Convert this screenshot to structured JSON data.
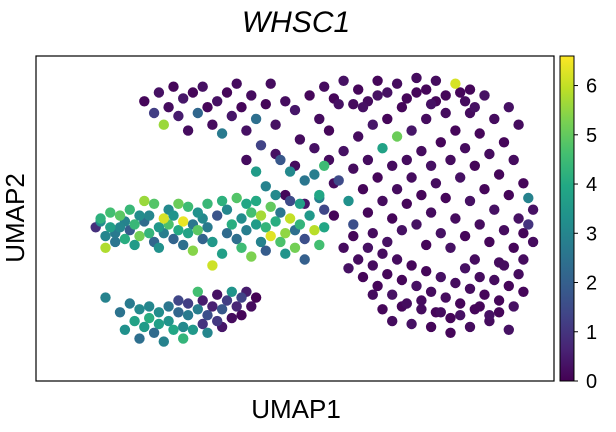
{
  "chart_data": {
    "type": "scatter",
    "title": "WHSC1",
    "xlabel": "UMAP1",
    "ylabel": "UMAP2",
    "colormap": "viridis",
    "colorbar": {
      "range": [
        0,
        6.6
      ],
      "ticks": [
        0,
        1,
        2,
        3,
        4,
        5,
        6
      ],
      "tick_labels": [
        "0",
        "1",
        "2",
        "3",
        "4",
        "5",
        "6"
      ]
    },
    "xlim": [
      0,
      100
    ],
    "ylim": [
      0,
      100
    ],
    "grid": false,
    "point_color_default": "#440154",
    "points": [
      [
        9,
        47,
        0.9
      ],
      [
        10,
        49,
        3.2
      ],
      [
        10,
        50,
        4.2
      ],
      [
        11,
        44,
        3.0
      ],
      [
        11,
        40,
        5.8
      ],
      [
        12,
        47,
        3.7
      ],
      [
        12,
        52,
        4.6
      ],
      [
        13,
        45,
        2.7
      ],
      [
        13,
        42,
        2.6
      ],
      [
        14,
        51,
        4.9
      ],
      [
        14,
        47,
        3.0
      ],
      [
        15,
        43,
        4.1
      ],
      [
        15,
        49,
        2.9
      ],
      [
        16,
        53,
        4.4
      ],
      [
        16,
        46,
        1.9
      ],
      [
        17,
        41,
        3.6
      ],
      [
        17,
        48,
        4.4
      ],
      [
        18,
        51,
        3.2
      ],
      [
        18,
        44,
        5.2
      ],
      [
        19,
        56,
        5.6
      ],
      [
        19,
        49,
        2.3
      ],
      [
        20,
        45,
        4.3
      ],
      [
        20,
        51,
        3.0
      ],
      [
        21,
        42,
        2.2
      ],
      [
        21,
        55,
        4.8
      ],
      [
        22,
        47,
        3.5
      ],
      [
        22,
        40,
        3.3
      ],
      [
        23,
        50,
        6.2
      ],
      [
        23,
        45,
        2.8
      ],
      [
        24,
        53,
        3.1
      ],
      [
        24,
        48,
        4.7
      ],
      [
        25,
        43,
        2.1
      ],
      [
        25,
        51,
        3.4
      ],
      [
        26,
        55,
        5.1
      ],
      [
        26,
        46,
        4.0
      ],
      [
        27,
        49,
        6.4
      ],
      [
        27,
        41,
        2.4
      ],
      [
        28,
        54,
        4.5
      ],
      [
        28,
        45,
        3.8
      ],
      [
        29,
        48,
        2.6
      ],
      [
        29,
        39,
        5.4
      ],
      [
        30,
        52,
        3.3
      ],
      [
        30,
        46,
        4.9
      ],
      [
        31,
        43,
        2.1
      ],
      [
        31,
        50,
        3.1
      ],
      [
        32,
        55,
        4.4
      ],
      [
        32,
        47,
        2.7
      ],
      [
        33,
        42,
        3.5
      ],
      [
        33,
        34,
        6.1
      ],
      [
        34,
        51,
        1.7
      ],
      [
        35,
        56,
        4.2
      ],
      [
        35,
        38,
        3.7
      ],
      [
        36,
        45,
        2.3
      ],
      [
        36,
        53,
        3.0
      ],
      [
        37,
        48,
        4.1
      ],
      [
        38,
        43,
        2.4
      ],
      [
        38,
        57,
        4.8
      ],
      [
        39,
        50,
        3.2
      ],
      [
        39,
        40,
        4.5
      ],
      [
        40,
        55,
        3.9
      ],
      [
        40,
        46,
        2.8
      ],
      [
        41,
        52,
        4.6
      ],
      [
        41,
        37,
        5.3
      ],
      [
        42,
        48,
        3.6
      ],
      [
        42,
        56,
        4.0
      ],
      [
        43,
        42,
        2.9
      ],
      [
        43,
        51,
        5.7
      ],
      [
        44,
        47,
        4.3
      ],
      [
        44,
        39,
        1.9
      ],
      [
        45,
        54,
        5.0
      ],
      [
        45,
        44,
        6.3
      ],
      [
        46,
        49,
        4.1
      ],
      [
        46,
        58,
        3.1
      ],
      [
        47,
        42,
        4.7
      ],
      [
        47,
        52,
        2.6
      ],
      [
        48,
        45,
        5.5
      ],
      [
        48,
        38,
        3.4
      ],
      [
        49,
        50,
        6.0
      ],
      [
        49,
        56,
        1.5
      ],
      [
        50,
        46,
        2.4
      ],
      [
        50,
        40,
        5.2
      ],
      [
        51,
        55,
        3.7
      ],
      [
        51,
        48,
        4.3
      ],
      [
        52,
        43,
        1.6
      ],
      [
        52,
        36,
        2.0
      ],
      [
        53,
        51,
        3.5
      ],
      [
        54,
        46,
        5.9
      ],
      [
        55,
        57,
        2.8
      ],
      [
        55,
        41,
        4.6
      ],
      [
        56,
        53,
        1.4
      ],
      [
        56,
        47,
        3.9
      ],
      [
        11,
        23,
        2.9
      ],
      [
        14,
        18,
        2.5
      ],
      [
        15,
        12,
        3.3
      ],
      [
        16,
        21,
        2.7
      ],
      [
        17,
        15,
        3.8
      ],
      [
        18,
        19,
        3.1
      ],
      [
        18,
        9,
        2.4
      ],
      [
        19,
        13,
        3.6
      ],
      [
        20,
        20,
        3.0
      ],
      [
        20,
        16,
        4.1
      ],
      [
        21,
        11,
        2.3
      ],
      [
        22,
        18,
        3.2
      ],
      [
        22,
        14,
        3.7
      ],
      [
        23,
        8,
        2.9
      ],
      [
        24,
        20,
        2.6
      ],
      [
        24,
        15,
        3.4
      ],
      [
        25,
        12,
        3.9
      ],
      [
        26,
        18,
        2.2
      ],
      [
        26,
        22,
        1.4
      ],
      [
        27,
        13,
        3.1
      ],
      [
        27,
        9,
        4.3
      ],
      [
        28,
        17,
        2.7
      ],
      [
        28,
        21,
        1.2
      ],
      [
        29,
        12,
        3.5
      ],
      [
        30,
        19,
        2.8
      ],
      [
        30,
        25,
        4.6
      ],
      [
        31,
        14,
        1.0
      ],
      [
        31,
        22,
        0.5
      ],
      [
        32,
        17,
        1.6
      ],
      [
        32,
        11,
        3.0
      ],
      [
        33,
        20,
        0.6
      ],
      [
        34,
        15,
        1.1
      ],
      [
        34,
        24,
        0.3
      ],
      [
        35,
        19,
        1.8
      ],
      [
        35,
        13,
        0.4
      ],
      [
        36,
        22,
        1.2
      ],
      [
        37,
        16,
        0.2
      ],
      [
        37,
        25,
        3.4
      ],
      [
        38,
        20,
        0.7
      ],
      [
        39,
        23,
        1.3
      ],
      [
        39,
        17,
        0.1
      ],
      [
        40,
        25,
        0.5
      ],
      [
        41,
        20,
        0.2
      ],
      [
        42,
        23,
        0.0
      ],
      [
        19,
        90,
        0.1
      ],
      [
        21,
        86,
        1.2
      ],
      [
        22,
        93,
        0.3
      ],
      [
        23,
        82,
        5.6
      ],
      [
        24,
        88,
        0.2
      ],
      [
        25,
        95,
        0.1
      ],
      [
        26,
        85,
        0.5
      ],
      [
        27,
        91,
        0.4
      ],
      [
        28,
        80,
        0.2
      ],
      [
        29,
        93,
        0.1
      ],
      [
        30,
        86,
        2.2
      ],
      [
        31,
        95,
        0.3
      ],
      [
        32,
        88,
        0.1
      ],
      [
        33,
        82,
        0.2
      ],
      [
        34,
        90,
        0.3
      ],
      [
        35,
        79,
        2.7
      ],
      [
        36,
        93,
        0.1
      ],
      [
        37,
        85,
        0.4
      ],
      [
        38,
        96,
        0.2
      ],
      [
        39,
        88,
        0.1
      ],
      [
        40,
        80,
        0.3
      ],
      [
        41,
        92,
        0.2
      ],
      [
        42,
        84,
        2.4
      ],
      [
        43,
        75,
        1.3
      ],
      [
        44,
        89,
        0.1
      ],
      [
        45,
        96,
        0.2
      ],
      [
        46,
        82,
        0.3
      ],
      [
        47,
        70,
        1.8
      ],
      [
        48,
        90,
        0.2
      ],
      [
        49,
        66,
        3.1
      ],
      [
        50,
        87,
        0.4
      ],
      [
        51,
        77,
        0.2
      ],
      [
        52,
        63,
        2.6
      ],
      [
        53,
        92,
        0.1
      ],
      [
        54,
        74,
        0.3
      ],
      [
        55,
        84,
        0.2
      ],
      [
        56,
        68,
        4.5
      ],
      [
        57,
        80,
        0.1
      ],
      [
        58,
        62,
        0.2
      ],
      [
        59,
        89,
        0.3
      ],
      [
        40,
        70,
        0.2
      ],
      [
        42,
        66,
        3.6
      ],
      [
        44,
        61,
        2.9
      ],
      [
        46,
        72,
        0.3
      ],
      [
        48,
        58,
        0.1
      ],
      [
        50,
        68,
        0.2
      ],
      [
        52,
        55,
        0.4
      ],
      [
        54,
        65,
        2.8
      ],
      [
        55,
        58,
        3.9
      ],
      [
        57,
        70,
        0.2
      ],
      [
        58,
        51,
        0.1
      ],
      [
        59,
        63,
        1.5
      ],
      [
        60,
        73,
        0.3
      ],
      [
        61,
        56,
        3.3
      ],
      [
        62,
        67,
        0.2
      ],
      [
        62,
        48,
        1.6
      ],
      [
        63,
        78,
        0.2
      ],
      [
        64,
        60,
        0.1
      ],
      [
        64,
        88,
        0.3
      ],
      [
        65,
        70,
        0.2
      ],
      [
        65,
        52,
        0.1
      ],
      [
        66,
        82,
        0.4
      ],
      [
        66,
        45,
        0.2
      ],
      [
        67,
        64,
        0.1
      ],
      [
        67,
        92,
        0.3
      ],
      [
        68,
        74,
        3.8
      ],
      [
        68,
        56,
        0.2
      ],
      [
        69,
        84,
        0.1
      ],
      [
        69,
        42,
        0.3
      ],
      [
        70,
        68,
        0.2
      ],
      [
        70,
        50,
        0.1
      ],
      [
        71,
        78,
        5.1
      ],
      [
        71,
        60,
        0.2
      ],
      [
        72,
        88,
        0.1
      ],
      [
        72,
        46,
        0.3
      ],
      [
        73,
        70,
        0.2
      ],
      [
        73,
        55,
        0.1
      ],
      [
        74,
        80,
        0.4
      ],
      [
        74,
        64,
        0.2
      ],
      [
        75,
        93,
        0.1
      ],
      [
        75,
        48,
        0.3
      ],
      [
        76,
        73,
        0.2
      ],
      [
        76,
        58,
        0.1
      ],
      [
        77,
        84,
        0.2
      ],
      [
        77,
        41,
        0.1
      ],
      [
        78,
        68,
        0.3
      ],
      [
        78,
        52,
        0.2
      ],
      [
        79,
        90,
        0.1
      ],
      [
        79,
        62,
        0.2
      ],
      [
        80,
        76,
        0.1
      ],
      [
        80,
        45,
        0.3
      ],
      [
        81,
        86,
        0.2
      ],
      [
        81,
        57,
        0.1
      ],
      [
        82,
        70,
        0.2
      ],
      [
        82,
        40,
        0.3
      ],
      [
        83,
        80,
        0.1
      ],
      [
        83,
        50,
        0.2
      ],
      [
        84,
        93,
        0.1
      ],
      [
        84,
        64,
        0.3
      ],
      [
        85,
        74,
        0.2
      ],
      [
        85,
        44,
        0.1
      ],
      [
        86,
        86,
        0.2
      ],
      [
        86,
        56,
        0.3
      ],
      [
        87,
        68,
        0.1
      ],
      [
        87,
        36,
        0.2
      ],
      [
        88,
        79,
        0.1
      ],
      [
        88,
        48,
        0.2
      ],
      [
        89,
        92,
        0.3
      ],
      [
        89,
        60,
        0.1
      ],
      [
        90,
        72,
        0.2
      ],
      [
        90,
        42,
        0.1
      ],
      [
        91,
        84,
        0.2
      ],
      [
        91,
        53,
        0.3
      ],
      [
        92,
        65,
        0.1
      ],
      [
        92,
        35,
        0.2
      ],
      [
        93,
        76,
        0.1
      ],
      [
        93,
        46,
        0.2
      ],
      [
        94,
        88,
        0.3
      ],
      [
        94,
        58,
        0.1
      ],
      [
        95,
        70,
        0.2
      ],
      [
        95,
        40,
        0.1
      ],
      [
        96,
        82,
        0.2
      ],
      [
        96,
        50,
        0.3
      ],
      [
        97,
        62,
        0.1
      ],
      [
        97,
        36,
        0.2
      ],
      [
        60,
        40,
        0.2
      ],
      [
        61,
        33,
        0.3
      ],
      [
        62,
        44,
        0.1
      ],
      [
        63,
        36,
        0.2
      ],
      [
        64,
        30,
        0.1
      ],
      [
        65,
        40,
        0.3
      ],
      [
        66,
        34,
        0.2
      ],
      [
        67,
        27,
        0.1
      ],
      [
        68,
        38,
        0.2
      ],
      [
        69,
        31,
        0.1
      ],
      [
        70,
        24,
        0.3
      ],
      [
        71,
        36,
        0.2
      ],
      [
        72,
        29,
        0.1
      ],
      [
        73,
        21,
        0.2
      ],
      [
        74,
        34,
        0.1
      ],
      [
        75,
        27,
        0.3
      ],
      [
        76,
        19,
        0.2
      ],
      [
        77,
        32,
        0.1
      ],
      [
        78,
        25,
        0.2
      ],
      [
        79,
        18,
        0.1
      ],
      [
        80,
        30,
        0.3
      ],
      [
        81,
        23,
        0.2
      ],
      [
        82,
        16,
        0.1
      ],
      [
        83,
        28,
        0.2
      ],
      [
        84,
        21,
        0.1
      ],
      [
        85,
        33,
        0.3
      ],
      [
        86,
        26,
        0.2
      ],
      [
        87,
        19,
        0.1
      ],
      [
        88,
        30,
        0.2
      ],
      [
        89,
        24,
        0.1
      ],
      [
        90,
        17,
        0.3
      ],
      [
        91,
        29,
        0.2
      ],
      [
        92,
        22,
        0.1
      ],
      [
        93,
        34,
        0.2
      ],
      [
        94,
        27,
        0.1
      ],
      [
        95,
        20,
        0.3
      ],
      [
        96,
        31,
        0.2
      ],
      [
        97,
        25,
        0.1
      ],
      [
        56,
        95,
        0.2
      ],
      [
        58,
        91,
        0.1
      ],
      [
        60,
        97,
        0.3
      ],
      [
        62,
        89,
        0.2
      ],
      [
        63,
        94,
        0.1
      ],
      [
        65,
        90,
        0.2
      ],
      [
        67,
        97,
        0.1
      ],
      [
        69,
        93,
        0.3
      ],
      [
        71,
        96,
        0.2
      ],
      [
        73,
        91,
        0.1
      ],
      [
        75,
        98,
        0.2
      ],
      [
        77,
        94,
        0.1
      ],
      [
        78,
        89,
        0.3
      ],
      [
        79,
        97,
        0.2
      ],
      [
        81,
        92,
        0.1
      ],
      [
        83,
        96,
        6.2
      ],
      [
        85,
        90,
        0.2
      ],
      [
        86,
        94,
        0.1
      ],
      [
        87,
        88,
        0.3
      ],
      [
        66,
        24,
        0.2
      ],
      [
        68,
        19,
        0.1
      ],
      [
        70,
        15,
        0.2
      ],
      [
        72,
        20,
        0.1
      ],
      [
        74,
        14,
        0.3
      ],
      [
        76,
        22,
        0.2
      ],
      [
        78,
        13,
        0.1
      ],
      [
        80,
        18,
        0.2
      ],
      [
        82,
        11,
        0.1
      ],
      [
        84,
        17,
        0.3
      ],
      [
        86,
        13,
        0.2
      ],
      [
        88,
        20,
        0.1
      ],
      [
        90,
        15,
        0.2
      ],
      [
        92,
        18,
        0.1
      ],
      [
        94,
        12,
        0.3
      ],
      [
        99,
        42,
        0.2
      ],
      [
        98,
        48,
        1.0
      ],
      [
        99,
        53,
        0.3
      ],
      [
        98,
        57,
        2.9
      ],
      [
        97,
        45,
        0.1
      ]
    ]
  }
}
